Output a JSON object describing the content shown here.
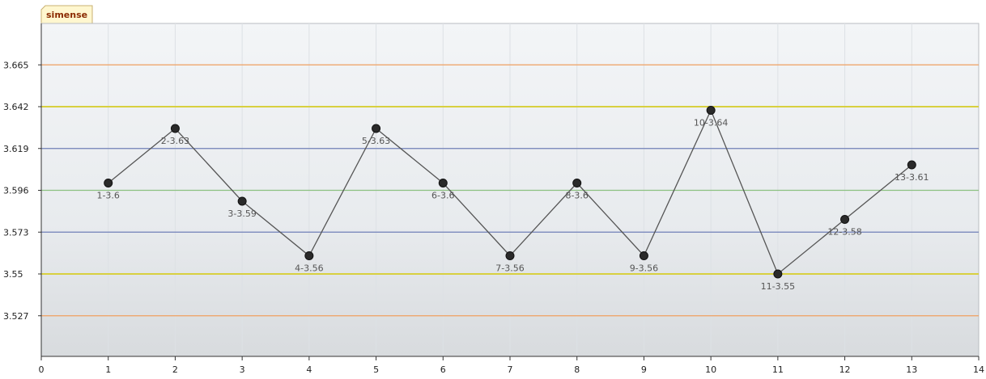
{
  "tab": {
    "label": "simense"
  },
  "chart_data": {
    "type": "line",
    "title": "",
    "xlabel": "",
    "ylabel": "",
    "xlim": [
      0,
      14
    ],
    "x_ticks": [
      "0",
      "1",
      "2",
      "3",
      "4",
      "5",
      "6",
      "7",
      "8",
      "9",
      "10",
      "11",
      "12",
      "13",
      "14"
    ],
    "y_ticks": [
      "3.527",
      "3.55",
      "3.573",
      "3.596",
      "3.619",
      "3.642",
      "3.665"
    ],
    "grid": true,
    "series": [
      {
        "x": [
          1,
          2,
          3,
          4,
          5,
          6,
          7,
          8,
          9,
          10,
          11,
          12,
          13
        ],
        "y": [
          3.6,
          3.63,
          3.59,
          3.56,
          3.63,
          3.6,
          3.56,
          3.6,
          3.56,
          3.64,
          3.55,
          3.58,
          3.61
        ],
        "point_labels": [
          "1-3.6",
          "2-3.63",
          "3-3.59",
          "4-3.56",
          "5-3.63",
          "6-3.6",
          "7-3.56",
          "8-3.6",
          "9-3.56",
          "10-3.64",
          "11-3.55",
          "12-3.58",
          "13-3.61"
        ],
        "color": "#555555"
      }
    ],
    "reference_lines": [
      {
        "y": 3.665,
        "color": "#f0a060"
      },
      {
        "y": 3.642,
        "color": "#d8d040"
      },
      {
        "y": 3.619,
        "color": "#7080b8"
      },
      {
        "y": 3.596,
        "color": "#8cc080"
      },
      {
        "y": 3.573,
        "color": "#7080b8"
      },
      {
        "y": 3.55,
        "color": "#d8d040"
      },
      {
        "y": 3.527,
        "color": "#f0a060"
      }
    ]
  }
}
